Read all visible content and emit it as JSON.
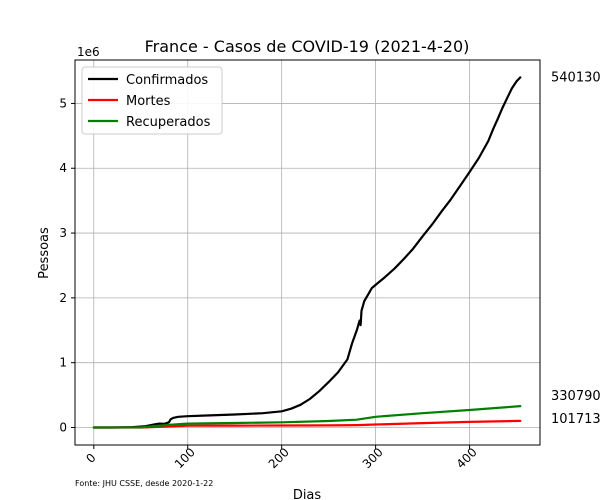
{
  "chart_data": {
    "type": "line",
    "title": "France - Casos de COVID-19 (2021-4-20)",
    "xlabel": "Dias",
    "ylabel": "Pessoas",
    "y_exponent_label": "1e6",
    "y_multiplier": 1000000,
    "xlim": [
      -20,
      475
    ],
    "ylim": [
      -270000,
      5670000
    ],
    "x_ticks": [
      0,
      100,
      200,
      300,
      400
    ],
    "x_tick_labels": [
      "0",
      "100",
      "200",
      "300",
      "400"
    ],
    "y_ticks": [
      0,
      1000000,
      2000000,
      3000000,
      4000000,
      5000000
    ],
    "y_tick_labels": [
      "0",
      "1",
      "2",
      "3",
      "4",
      "5"
    ],
    "grid": true,
    "legend_position": "top-left",
    "series": [
      {
        "name": "Confirmados",
        "color": "#000000",
        "x": [
          0,
          20,
          40,
          55,
          65,
          70,
          75,
          80,
          82,
          85,
          90,
          100,
          120,
          150,
          180,
          200,
          210,
          220,
          230,
          240,
          250,
          260,
          270,
          275,
          280,
          283,
          284,
          285,
          288,
          292,
          296,
          300,
          310,
          320,
          330,
          340,
          350,
          360,
          370,
          380,
          390,
          400,
          410,
          420,
          425,
          430,
          435,
          440,
          445,
          450,
          454
        ],
        "y": [
          0,
          100,
          5000,
          20000,
          50000,
          60000,
          55000,
          80000,
          130000,
          150000,
          165000,
          175000,
          185000,
          200000,
          220000,
          250000,
          290000,
          350000,
          440000,
          560000,
          700000,
          850000,
          1050000,
          1300000,
          1500000,
          1650000,
          1580000,
          1800000,
          1950000,
          2050000,
          2150000,
          2200000,
          2320000,
          2450000,
          2600000,
          2760000,
          2950000,
          3130000,
          3330000,
          3520000,
          3730000,
          3940000,
          4160000,
          4420000,
          4600000,
          4760000,
          4930000,
          5080000,
          5230000,
          5340000,
          5401300
        ]
      },
      {
        "name": "Mortes",
        "color": "#ff0000",
        "x": [
          0,
          50,
          80,
          100,
          150,
          200,
          250,
          280,
          300,
          350,
          400,
          454
        ],
        "y": [
          0,
          500,
          15000,
          28000,
          30000,
          31000,
          33000,
          37000,
          47000,
          68000,
          86000,
          101713
        ]
      },
      {
        "name": "Recuperados",
        "color": "#008000",
        "x": [
          0,
          50,
          80,
          100,
          150,
          200,
          250,
          280,
          300,
          350,
          400,
          454
        ],
        "y": [
          0,
          2000,
          40000,
          60000,
          70000,
          80000,
          100000,
          120000,
          165000,
          220000,
          270000,
          330790
        ]
      }
    ],
    "end_labels": [
      "5401300",
      "330790",
      "101713"
    ]
  },
  "source_note": "Fonte: JHU CSSE, desde 2020-1-22"
}
